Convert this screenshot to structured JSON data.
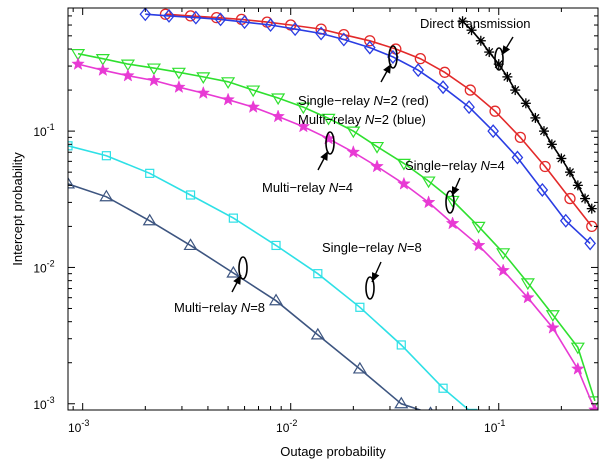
{
  "chart_data": {
    "type": "line",
    "xlabel": "Outage probability",
    "ylabel": "Intercept probability",
    "xscale": "log",
    "yscale": "log",
    "xlim": [
      0.00085,
      0.3
    ],
    "ylim": [
      0.0009,
      0.8
    ],
    "grid": false,
    "x_ticks": [
      {
        "value": 0.001,
        "base": "10",
        "exp": "-3"
      },
      {
        "value": 0.01,
        "base": "10",
        "exp": "-2"
      },
      {
        "value": 0.1,
        "base": "10",
        "exp": "-1"
      }
    ],
    "y_ticks": [
      {
        "value": 0.001,
        "base": "10",
        "exp": "-3"
      },
      {
        "value": 0.01,
        "base": "10",
        "exp": "-2"
      },
      {
        "value": 0.1,
        "base": "10",
        "exp": "-1"
      }
    ],
    "series": [
      {
        "id": "direct",
        "color": "#000000",
        "marker": "asterisk",
        "x": [
          0.067,
          0.074,
          0.082,
          0.09,
          0.1,
          0.11,
          0.12,
          0.135,
          0.15,
          0.165,
          0.18,
          0.2,
          0.22,
          0.24,
          0.26,
          0.28
        ],
        "y": [
          0.64,
          0.55,
          0.46,
          0.38,
          0.31,
          0.25,
          0.2,
          0.16,
          0.125,
          0.1,
          0.08,
          0.063,
          0.05,
          0.04,
          0.032,
          0.027
        ]
      },
      {
        "id": "single-relay-n2",
        "color": "#e32a2a",
        "marker": "circle",
        "x": [
          0.0025,
          0.0033,
          0.0044,
          0.0058,
          0.0077,
          0.01,
          0.014,
          0.018,
          0.024,
          0.032,
          0.042,
          0.055,
          0.073,
          0.096,
          0.127,
          0.167,
          0.22,
          0.28
        ],
        "y": [
          0.72,
          0.7,
          0.68,
          0.66,
          0.63,
          0.6,
          0.56,
          0.51,
          0.46,
          0.4,
          0.34,
          0.27,
          0.2,
          0.14,
          0.09,
          0.055,
          0.032,
          0.02
        ]
      },
      {
        "id": "multi-relay-n2",
        "color": "#2a3de3",
        "marker": "diamond",
        "x": [
          0.002,
          0.0026,
          0.0035,
          0.0046,
          0.006,
          0.008,
          0.0105,
          0.014,
          0.018,
          0.024,
          0.031,
          0.041,
          0.054,
          0.072,
          0.094,
          0.123,
          0.162,
          0.21,
          0.275
        ],
        "y": [
          0.72,
          0.7,
          0.68,
          0.66,
          0.63,
          0.6,
          0.56,
          0.52,
          0.47,
          0.41,
          0.35,
          0.28,
          0.21,
          0.15,
          0.1,
          0.064,
          0.037,
          0.022,
          0.015
        ]
      },
      {
        "id": "single-relay-n4",
        "color": "#2fe02f",
        "marker": "triangle-down",
        "x": [
          0.00095,
          0.00125,
          0.00165,
          0.0022,
          0.0029,
          0.0038,
          0.005,
          0.0066,
          0.0087,
          0.0115,
          0.0152,
          0.02,
          0.026,
          0.035,
          0.046,
          0.06,
          0.08,
          0.105,
          0.138,
          0.182,
          0.24,
          0.29
        ],
        "y": [
          0.37,
          0.34,
          0.31,
          0.29,
          0.27,
          0.25,
          0.23,
          0.2,
          0.175,
          0.15,
          0.124,
          0.1,
          0.077,
          0.058,
          0.043,
          0.031,
          0.02,
          0.0128,
          0.0077,
          0.0045,
          0.0026,
          0.00105
        ]
      },
      {
        "id": "multi-relay-n4",
        "color": "#e83ad4",
        "marker": "star",
        "x": [
          0.00095,
          0.00125,
          0.00165,
          0.0022,
          0.0029,
          0.0038,
          0.005,
          0.0066,
          0.0087,
          0.0115,
          0.0152,
          0.02,
          0.026,
          0.035,
          0.046,
          0.06,
          0.08,
          0.105,
          0.138,
          0.182,
          0.24,
          0.29
        ],
        "y": [
          0.31,
          0.28,
          0.255,
          0.235,
          0.21,
          0.19,
          0.17,
          0.15,
          0.128,
          0.108,
          0.088,
          0.07,
          0.055,
          0.041,
          0.03,
          0.021,
          0.0145,
          0.0095,
          0.006,
          0.0036,
          0.0018,
          0.0009
        ]
      },
      {
        "id": "single-relay-n8",
        "color": "#2ee0e6",
        "marker": "square",
        "x": [
          0.00085,
          0.0013,
          0.0021,
          0.0033,
          0.0053,
          0.0085,
          0.0135,
          0.0215,
          0.034,
          0.054,
          0.075
        ],
        "y": [
          0.078,
          0.066,
          0.049,
          0.034,
          0.023,
          0.0145,
          0.009,
          0.0051,
          0.0027,
          0.0013,
          0.00085
        ]
      },
      {
        "id": "multi-relay-n8",
        "color": "#3d5580",
        "marker": "triangle-up",
        "x": [
          0.00085,
          0.0013,
          0.0021,
          0.0033,
          0.0053,
          0.0085,
          0.0135,
          0.0215,
          0.034,
          0.047
        ],
        "y": [
          0.041,
          0.033,
          0.022,
          0.0145,
          0.0091,
          0.0057,
          0.0032,
          0.0018,
          0.001,
          0.00085
        ]
      }
    ],
    "annotations": [
      {
        "id": "direct",
        "text": "Direct transmission"
      },
      {
        "id": "single-relay-n2",
        "text": "Single−relay N=2 (red)"
      },
      {
        "id": "multi-relay-n2",
        "text": "Multi−relay N=2 (blue)"
      },
      {
        "id": "multi-relay-n4",
        "text": "Multi−relay N=4"
      },
      {
        "id": "single-relay-n4",
        "text": "Single−relay N=4"
      },
      {
        "id": "single-relay-n8",
        "text": "Single−relay N=8"
      },
      {
        "id": "multi-relay-n8",
        "text": "Multi−relay N=8"
      }
    ]
  }
}
